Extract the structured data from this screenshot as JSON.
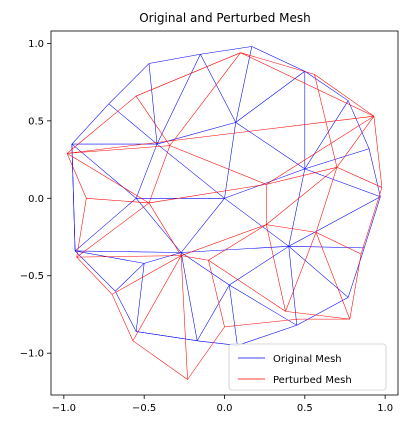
{
  "chart_data": {
    "type": "line",
    "title": "Original and Perturbed Mesh",
    "xlabel": "",
    "ylabel": "",
    "xlim": [
      -1.08,
      1.08
    ],
    "ylim": [
      -1.27,
      1.08
    ],
    "xticks": [
      -1.0,
      -0.5,
      0.0,
      0.5,
      1.0
    ],
    "xtick_labels": [
      "−1.0",
      "−0.5",
      "0.0",
      "0.5",
      "1.0"
    ],
    "yticks": [
      -1.0,
      -0.5,
      0.0,
      0.5,
      1.0
    ],
    "ytick_labels": [
      "−1.0",
      "−0.5",
      "0.0",
      "0.5",
      "1.0"
    ],
    "grid": false,
    "legend_position": "lower-right",
    "series": [
      {
        "name": "Original Mesh",
        "color": "#0000ff",
        "nodes": [
          [
            -0.47,
            0.87
          ],
          [
            0.17,
            0.98
          ],
          [
            0.77,
            0.63
          ],
          [
            0.97,
            0.01
          ],
          [
            0.87,
            -0.32
          ],
          [
            0.77,
            -0.64
          ],
          [
            0.45,
            -0.82
          ],
          [
            0.08,
            -0.95
          ],
          [
            -0.55,
            -0.86
          ],
          [
            -0.93,
            -0.34
          ],
          [
            -0.95,
            0.35
          ],
          [
            -0.72,
            0.61
          ],
          [
            -0.15,
            0.93
          ],
          [
            0.5,
            0.82
          ],
          [
            0.9,
            0.32
          ],
          [
            -0.42,
            0.35
          ],
          [
            0.07,
            0.49
          ],
          [
            0.5,
            0.19
          ],
          [
            0.0,
            0.0
          ],
          [
            -0.55,
            0.0
          ],
          [
            -0.27,
            -0.35
          ],
          [
            0.4,
            -0.31
          ],
          [
            0.03,
            -0.56
          ],
          [
            -0.5,
            -0.42
          ],
          [
            -0.17,
            -0.92
          ],
          [
            -0.68,
            -0.6
          ]
        ],
        "edges": [
          [
            0,
            12
          ],
          [
            12,
            1
          ],
          [
            1,
            13
          ],
          [
            13,
            2
          ],
          [
            2,
            14
          ],
          [
            14,
            3
          ],
          [
            3,
            4
          ],
          [
            4,
            5
          ],
          [
            5,
            6
          ],
          [
            6,
            7
          ],
          [
            7,
            24
          ],
          [
            24,
            8
          ],
          [
            8,
            25
          ],
          [
            25,
            9
          ],
          [
            9,
            10
          ],
          [
            10,
            11
          ],
          [
            11,
            0
          ],
          [
            11,
            15
          ],
          [
            0,
            15
          ],
          [
            12,
            15
          ],
          [
            12,
            16
          ],
          [
            13,
            16
          ],
          [
            13,
            17
          ],
          [
            2,
            17
          ],
          [
            14,
            17
          ],
          [
            3,
            17
          ],
          [
            10,
            15
          ],
          [
            15,
            16
          ],
          [
            16,
            17
          ],
          [
            15,
            19
          ],
          [
            10,
            19
          ],
          [
            9,
            19
          ],
          [
            19,
            18
          ],
          [
            15,
            18
          ],
          [
            16,
            18
          ],
          [
            17,
            18
          ],
          [
            18,
            21
          ],
          [
            17,
            21
          ],
          [
            4,
            21
          ],
          [
            3,
            21
          ],
          [
            18,
            20
          ],
          [
            19,
            20
          ],
          [
            20,
            21
          ],
          [
            9,
            20
          ],
          [
            20,
            22
          ],
          [
            21,
            22
          ],
          [
            21,
            6
          ],
          [
            5,
            21
          ],
          [
            22,
            6
          ],
          [
            22,
            7
          ],
          [
            22,
            24
          ],
          [
            20,
            24
          ],
          [
            20,
            23
          ],
          [
            23,
            25
          ],
          [
            23,
            8
          ],
          [
            9,
            23
          ],
          [
            24,
            8
          ],
          [
            1,
            16
          ],
          [
            10,
            9
          ]
        ]
      },
      {
        "name": "Perturbed Mesh",
        "color": "#ff0000",
        "nodes": [
          [
            -0.55,
            0.66
          ],
          [
            0.1,
            0.94
          ],
          [
            0.56,
            0.8
          ],
          [
            0.93,
            0.53
          ],
          [
            0.98,
            0.07
          ],
          [
            0.85,
            -0.36
          ],
          [
            0.78,
            -0.78
          ],
          [
            0.46,
            -0.78
          ],
          [
            0.0,
            -0.83
          ],
          [
            -0.23,
            -1.17
          ],
          [
            -0.57,
            -0.92
          ],
          [
            -0.7,
            -0.62
          ],
          [
            -0.92,
            -0.38
          ],
          [
            -0.98,
            0.29
          ],
          [
            -0.86,
            0.0
          ],
          [
            -0.88,
            0.26
          ],
          [
            -0.34,
            0.34
          ],
          [
            0.26,
            0.09
          ],
          [
            0.7,
            0.2
          ],
          [
            -0.47,
            -0.03
          ],
          [
            -0.27,
            -0.37
          ],
          [
            0.26,
            -0.17
          ],
          [
            -0.1,
            -0.4
          ],
          [
            0.57,
            -0.22
          ],
          [
            0.38,
            -0.73
          ]
        ],
        "edges": [
          [
            0,
            1
          ],
          [
            1,
            2
          ],
          [
            2,
            3
          ],
          [
            3,
            4
          ],
          [
            4,
            5
          ],
          [
            5,
            6
          ],
          [
            6,
            7
          ],
          [
            7,
            8
          ],
          [
            8,
            9
          ],
          [
            9,
            10
          ],
          [
            10,
            11
          ],
          [
            11,
            12
          ],
          [
            12,
            14
          ],
          [
            14,
            13
          ],
          [
            13,
            0
          ],
          [
            0,
            16
          ],
          [
            1,
            16
          ],
          [
            2,
            18
          ],
          [
            3,
            18
          ],
          [
            4,
            18
          ],
          [
            16,
            17
          ],
          [
            17,
            18
          ],
          [
            13,
            16
          ],
          [
            13,
            19
          ],
          [
            14,
            19
          ],
          [
            16,
            19
          ],
          [
            19,
            17
          ],
          [
            17,
            21
          ],
          [
            18,
            21
          ],
          [
            18,
            23
          ],
          [
            5,
            23
          ],
          [
            21,
            23
          ],
          [
            19,
            20
          ],
          [
            12,
            20
          ],
          [
            11,
            20
          ],
          [
            20,
            21
          ],
          [
            20,
            22
          ],
          [
            22,
            21
          ],
          [
            22,
            24
          ],
          [
            21,
            24
          ],
          [
            23,
            24
          ],
          [
            24,
            6
          ],
          [
            23,
            6
          ],
          [
            22,
            8
          ],
          [
            20,
            9
          ],
          [
            20,
            10
          ],
          [
            12,
            19
          ],
          [
            3,
            17
          ],
          [
            3,
            13
          ],
          [
            1,
            3
          ]
        ]
      }
    ]
  }
}
